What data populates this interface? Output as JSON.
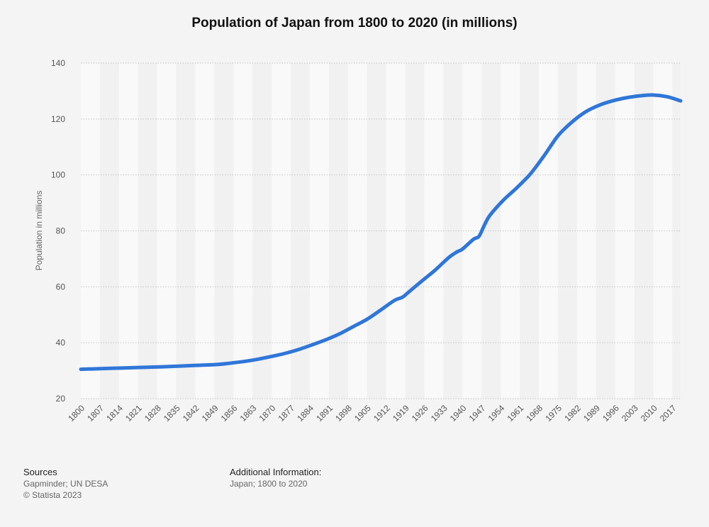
{
  "chart_data": {
    "type": "line",
    "title": "Population of Japan from 1800 to 2020 (in millions)",
    "xlabel": "",
    "ylabel": "Population in millions",
    "ylim": [
      20,
      140
    ],
    "yticks": [
      20,
      40,
      60,
      80,
      100,
      120,
      140
    ],
    "xticks": [
      "1800",
      "1807",
      "1814",
      "1821",
      "1828",
      "1835",
      "1842",
      "1849",
      "1856",
      "1863",
      "1870",
      "1877",
      "1884",
      "1891",
      "1898",
      "1905",
      "1912",
      "1919",
      "1926",
      "1933",
      "1940",
      "1947",
      "1954",
      "1961",
      "1968",
      "1975",
      "1982",
      "1989",
      "1996",
      "2003",
      "2010",
      "2017"
    ],
    "series": [
      {
        "name": "Population",
        "color": "#2f76d8",
        "x": [
          1800,
          1810,
          1820,
          1830,
          1840,
          1850,
          1855,
          1860,
          1865,
          1870,
          1875,
          1880,
          1885,
          1890,
          1895,
          1900,
          1905,
          1910,
          1915,
          1918,
          1920,
          1925,
          1930,
          1935,
          1938,
          1940,
          1944,
          1946,
          1948,
          1950,
          1955,
          1960,
          1965,
          1970,
          1975,
          1980,
          1985,
          1990,
          1995,
          2000,
          2005,
          2010,
          2015,
          2020
        ],
        "values": [
          30.5,
          30.8,
          31.1,
          31.4,
          31.8,
          32.2,
          32.7,
          33.3,
          34.1,
          35.1,
          36.2,
          37.6,
          39.3,
          41.1,
          43.2,
          45.8,
          48.4,
          51.7,
          55.1,
          56.3,
          57.9,
          62.0,
          66.0,
          70.5,
          72.5,
          73.5,
          77.0,
          78.0,
          82.0,
          85.5,
          91.0,
          95.5,
          100.5,
          107.0,
          114.0,
          118.8,
          122.5,
          124.9,
          126.5,
          127.6,
          128.3,
          128.6,
          128.0,
          126.5
        ]
      }
    ]
  },
  "footer": {
    "sources_heading": "Sources",
    "sources_line1": "Gapminder; UN DESA",
    "copyright": "© Statista 2023",
    "additional_heading": "Additional Information:",
    "additional_text": "Japan; 1800 to 2020"
  },
  "colors": {
    "line": "#2f76d8",
    "band_light": "#f9f9f9",
    "band_dark": "#f1f1f1",
    "grid": "#c4c4c4"
  }
}
